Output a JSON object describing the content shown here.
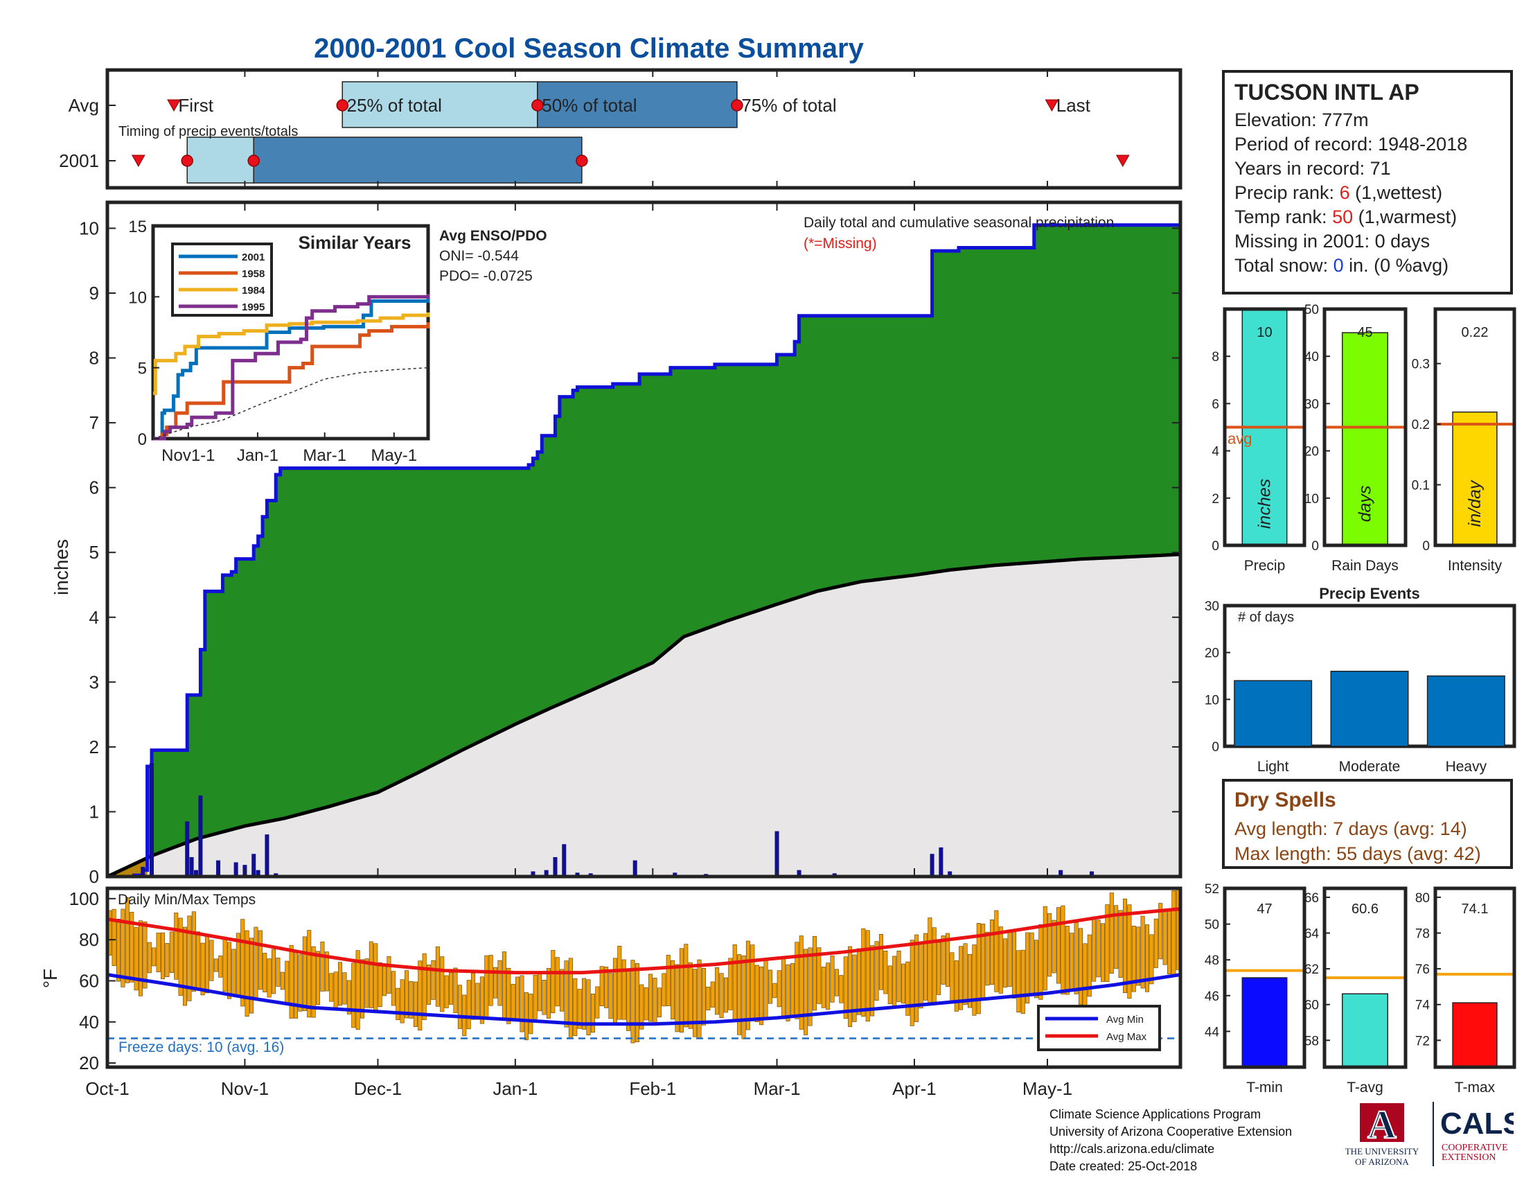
{
  "page": {
    "title": "2000-2001 Cool Season Climate Summary"
  },
  "timing": {
    "caption": "Timing of precip events/totals",
    "row_labels": [
      "Avg",
      "2001"
    ],
    "marker_labels": [
      "First",
      "25% of total",
      "50% of total",
      "75% of total",
      "Last"
    ],
    "colors": {
      "light": "#add8e6",
      "dark": "#4682b4",
      "marker": "#e8101a"
    }
  },
  "station": {
    "name": "TUCSON INTL AP",
    "elevation": "Elevation: 777m",
    "period": "Period of record: 1948-2018",
    "years": "Years in record: 71",
    "precip_rank_pre": "Precip rank: ",
    "precip_rank_val": "6",
    "precip_rank_post": " (1,wettest)",
    "temp_rank_pre": "Temp rank: ",
    "temp_rank_val": "50",
    "temp_rank_post": " (1,warmest)",
    "missing": "Missing in 2001: 0 days",
    "snow_pre": "Total snow: ",
    "snow_val": "0",
    "snow_post": " in. (0 %avg)"
  },
  "dry_spells": {
    "title": "Dry Spells",
    "avg_length": "Avg length: 7 days (avg: 14)",
    "max_length": "Max length: 55 days (avg: 42)"
  },
  "credits": {
    "line1": "Climate Science Applications Program",
    "line2": "University of Arizona Cooperative Extension",
    "line3": "http://cals.arizona.edu/climate",
    "line4": " Date created: 25-Oct-2018",
    "ua_text1": "THE UNIVERSITY",
    "ua_text2": "OF ARIZONA",
    "ua_letter": "A",
    "cals_text": "CALS",
    "cals_sub1": "COOPERATIVE",
    "cals_sub2": "EXTENSION"
  },
  "chart_data": [
    {
      "type": "area",
      "id": "cumulative-precip",
      "ylabel": "inches",
      "ylim": [
        0,
        10.4
      ],
      "yticks": [
        0,
        1,
        2,
        3,
        4,
        5,
        6,
        7,
        8,
        9,
        10
      ],
      "xticks": [
        "Oct-1",
        "Nov-1",
        "Dec-1",
        "Jan-1",
        "Feb-1",
        "Mar-1",
        "Apr-1",
        "May-1"
      ],
      "xtick_days": [
        0,
        31,
        61,
        92,
        123,
        151,
        182,
        212
      ],
      "x_days_total": 242,
      "annotation": "Daily total and cumulative seasonal precipitation",
      "missing_note": "(*=Missing)",
      "enso_title": "Avg ENSO/PDO",
      "oni": "ONI= -0.544",
      "pdo": "PDO= -0.0725",
      "series": [
        {
          "name": "2001",
          "color": "#1010d8",
          "fill": "#228b22",
          "x": [
            0,
            6,
            8,
            9,
            10,
            17,
            18,
            21,
            22,
            25,
            26,
            28,
            29,
            33,
            34,
            35,
            36,
            38,
            39,
            95,
            96,
            97,
            98,
            101,
            102,
            105,
            106,
            113,
            114,
            119,
            120,
            126,
            127,
            136,
            137,
            150,
            151,
            155,
            156,
            185,
            186,
            191,
            192,
            208,
            209,
            242
          ],
          "y": [
            0,
            0.02,
            0.1,
            1.7,
            1.95,
            1.95,
            2.8,
            3.5,
            4.4,
            4.4,
            4.65,
            4.7,
            4.9,
            5.1,
            5.25,
            5.55,
            5.8,
            6.2,
            6.3,
            6.35,
            6.45,
            6.55,
            6.8,
            7.1,
            7.4,
            7.5,
            7.55,
            7.55,
            7.6,
            7.6,
            7.75,
            7.75,
            7.85,
            7.85,
            7.9,
            7.9,
            8.05,
            8.25,
            8.65,
            8.65,
            9.65,
            9.65,
            9.7,
            9.7,
            10.05,
            10.05
          ]
        },
        {
          "name": "Average",
          "color": "#000000",
          "fill": "#e8e6e6",
          "x": [
            0,
            10,
            20,
            31,
            40,
            50,
            61,
            70,
            80,
            92,
            100,
            110,
            123,
            130,
            140,
            151,
            160,
            170,
            182,
            190,
            200,
            212,
            220,
            230,
            242
          ],
          "y": [
            0,
            0.32,
            0.58,
            0.78,
            0.9,
            1.08,
            1.3,
            1.6,
            1.95,
            2.35,
            2.6,
            2.9,
            3.3,
            3.7,
            3.95,
            4.2,
            4.4,
            4.55,
            4.65,
            4.73,
            4.8,
            4.86,
            4.9,
            4.93,
            4.97
          ]
        }
      ],
      "daily_bars": {
        "color": "#101090",
        "days": [
          8,
          10,
          18,
          19,
          20,
          21,
          25,
          29,
          31,
          33,
          34,
          36,
          38,
          96,
          99,
          101,
          103,
          106,
          109,
          119,
          128,
          135,
          151,
          156,
          164,
          186,
          188,
          190,
          215,
          222
        ],
        "values": [
          0.15,
          1.75,
          0.85,
          0.3,
          0.1,
          1.25,
          0.25,
          0.22,
          0.18,
          0.35,
          0.1,
          0.65,
          0.05,
          0.08,
          0.1,
          0.3,
          0.5,
          0.06,
          0.05,
          0.25,
          0.06,
          0.04,
          0.7,
          0.1,
          0.05,
          0.35,
          0.45,
          0.08,
          0.1,
          0.08
        ]
      }
    },
    {
      "type": "line",
      "id": "similar-years",
      "title": "Similar Years",
      "ylim": [
        0,
        15
      ],
      "yticks": [
        0,
        5,
        10,
        15
      ],
      "xticks": [
        "Nov1-1",
        "Jan-1",
        "Mar-1",
        "May-1"
      ],
      "xtick_days": [
        31,
        92,
        151,
        212
      ],
      "x_days_total": 242,
      "series": [
        {
          "name": "2001",
          "color": "#0072bd",
          "x": [
            0,
            8,
            10,
            18,
            22,
            26,
            33,
            38,
            60,
            92,
            100,
            120,
            150,
            185,
            192,
            209,
            242
          ],
          "y": [
            0,
            1.8,
            2.0,
            3.0,
            4.5,
            4.8,
            5.3,
            6.4,
            6.4,
            6.4,
            7.5,
            7.8,
            7.9,
            8.7,
            9.7,
            9.7,
            10.1
          ]
        },
        {
          "name": "1958",
          "color": "#d95319",
          "x": [
            0,
            8,
            12,
            20,
            30,
            60,
            62,
            100,
            120,
            132,
            140,
            170,
            182,
            190,
            210,
            242
          ],
          "y": [
            0,
            0.3,
            0.8,
            1.8,
            2.5,
            2.5,
            4.0,
            4.0,
            5.0,
            5.3,
            6.5,
            6.5,
            7.3,
            7.6,
            7.9,
            8.2
          ]
        },
        {
          "name": "1984",
          "color": "#edb120",
          "x": [
            0,
            2,
            18,
            20,
            28,
            40,
            58,
            80,
            100,
            120,
            140,
            180,
            200,
            220,
            242
          ],
          "y": [
            3.2,
            5.5,
            5.5,
            6.0,
            6.5,
            7.2,
            7.4,
            7.6,
            8.0,
            8.1,
            8.2,
            8.3,
            8.5,
            8.7,
            8.9
          ]
        },
        {
          "name": "1995",
          "color": "#7e2f8e",
          "x": [
            0,
            10,
            15,
            30,
            34,
            55,
            70,
            90,
            110,
            130,
            135,
            140,
            160,
            180,
            190,
            200,
            242
          ],
          "y": [
            0,
            0.5,
            0.8,
            1.0,
            1.5,
            1.8,
            5.5,
            6.0,
            6.8,
            7.0,
            8.5,
            9.0,
            9.3,
            9.5,
            10.0,
            10.0,
            10.2
          ]
        },
        {
          "name": "Average",
          "color": "#333333",
          "dashed": true,
          "x": [
            0,
            31,
            61,
            92,
            123,
            151,
            182,
            212,
            242
          ],
          "y": [
            0,
            0.8,
            1.3,
            2.35,
            3.3,
            4.2,
            4.65,
            4.86,
            5.0
          ]
        }
      ]
    },
    {
      "type": "bar",
      "id": "temps",
      "title": "Daily Min/Max Temps",
      "ylabel": "°F",
      "ylim": [
        18,
        105
      ],
      "yticks": [
        20,
        40,
        60,
        80,
        100
      ],
      "xticks": [
        "Oct-1",
        "Nov-1",
        "Dec-1",
        "Jan-1",
        "Feb-1",
        "Mar-1",
        "Apr-1",
        "May-1"
      ],
      "xtick_days": [
        0,
        31,
        61,
        92,
        123,
        151,
        182,
        212
      ],
      "x_days_total": 242,
      "freeze_line": 32,
      "freeze_text": "Freeze days: 10 (avg. 16)",
      "bar_color": "#f0a10a",
      "legend": [
        "Avg Min",
        "Avg Max"
      ],
      "avg_min": {
        "color": "#1010e0",
        "x": [
          0,
          15,
          31,
          46,
          61,
          76,
          92,
          107,
          123,
          137,
          151,
          166,
          182,
          197,
          212,
          227,
          242
        ],
        "y": [
          63,
          58,
          52,
          47,
          45,
          43,
          41,
          39,
          39,
          40,
          42,
          45,
          48,
          51,
          54,
          58,
          63
        ]
      },
      "avg_max": {
        "color": "#e81414",
        "x": [
          0,
          15,
          31,
          46,
          61,
          76,
          92,
          107,
          123,
          137,
          151,
          166,
          182,
          197,
          212,
          227,
          242
        ],
        "y": [
          90,
          85,
          79,
          73,
          68,
          65,
          64,
          64,
          66,
          68,
          71,
          74,
          78,
          82,
          87,
          92,
          95
        ]
      }
    },
    {
      "type": "bar",
      "id": "precip-total",
      "categories": [
        "Precip"
      ],
      "values": [
        10
      ],
      "value_label": "10",
      "ylim": [
        0,
        10
      ],
      "yticks": [
        0,
        2,
        4,
        6,
        8
      ],
      "avg": 5,
      "avg_label": "avg",
      "unit": "inches",
      "color": "#40e0d0",
      "avg_color": "#d95319"
    },
    {
      "type": "bar",
      "id": "rain-days",
      "categories": [
        "Rain Days"
      ],
      "values": [
        45
      ],
      "value_label": "45",
      "ylim": [
        0,
        50
      ],
      "yticks": [
        0,
        10,
        20,
        30,
        40,
        50
      ],
      "avg": 25,
      "unit": "days",
      "color": "#7cfc00",
      "avg_color": "#d95319"
    },
    {
      "type": "bar",
      "id": "intensity",
      "categories": [
        "Intensity"
      ],
      "values": [
        0.22
      ],
      "value_label": "0.22",
      "ylim": [
        0,
        0.39
      ],
      "yticks": [
        0,
        0.1,
        0.2,
        0.3
      ],
      "avg": 0.2,
      "unit": "in/day",
      "color": "#ffd700",
      "avg_color": "#d95319"
    },
    {
      "type": "bar",
      "id": "precip-events",
      "title": "Precip Events",
      "annotation": "# of days",
      "categories": [
        "Light",
        "Moderate",
        "Heavy"
      ],
      "values": [
        14,
        16,
        15
      ],
      "ylim": [
        0,
        30
      ],
      "yticks": [
        0,
        10,
        20,
        30
      ],
      "color": "#0072bd"
    },
    {
      "type": "bar",
      "id": "t-min",
      "categories": [
        "T-min"
      ],
      "values": [
        47
      ],
      "value_label": "47",
      "ylim": [
        42,
        52
      ],
      "yticks": [
        44,
        46,
        48,
        50,
        52
      ],
      "avg": 47.4,
      "color": "#0b0bff",
      "avg_color": "#f5a30f"
    },
    {
      "type": "bar",
      "id": "t-avg",
      "categories": [
        "T-avg"
      ],
      "values": [
        60.6
      ],
      "value_label": "60.6",
      "ylim": [
        56.5,
        66.5
      ],
      "yticks": [
        58,
        60,
        62,
        64,
        66
      ],
      "avg": 61.5,
      "color": "#40e0d0",
      "avg_color": "#f5a30f"
    },
    {
      "type": "bar",
      "id": "t-max",
      "categories": [
        "T-max"
      ],
      "values": [
        74.1
      ],
      "value_label": "74.1",
      "ylim": [
        70.5,
        80.5
      ],
      "yticks": [
        72,
        74,
        76,
        78,
        80
      ],
      "avg": 75.7,
      "color": "#ff0b0b",
      "avg_color": "#f5a30f"
    }
  ]
}
